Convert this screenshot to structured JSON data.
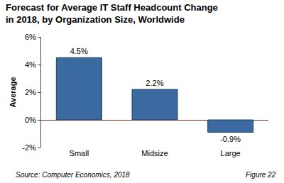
{
  "chart_data": {
    "type": "bar",
    "title": "Forecast for Average IT Staff Headcount Change\nin 2018, by Organization Size, Worldwide",
    "y_label": "Average",
    "categories": [
      "Small",
      "Midsize",
      "Large"
    ],
    "values": [
      4.5,
      2.2,
      -0.9
    ],
    "value_labels": [
      "4.5%",
      "2.2%",
      "-0.9%"
    ],
    "color": "#3b6aa0",
    "ylim": [
      -2,
      6
    ],
    "yticks": [
      {
        "value": -2,
        "label": "-2%"
      },
      {
        "value": 0,
        "label": "0%"
      },
      {
        "value": 2,
        "label": "2%"
      },
      {
        "value": 4,
        "label": "4%"
      },
      {
        "value": 6,
        "label": "6%"
      }
    ],
    "grid": false,
    "data_labels": true,
    "annotations": [
      "Source: Computer Economics, 2018",
      "Figure 22"
    ]
  }
}
